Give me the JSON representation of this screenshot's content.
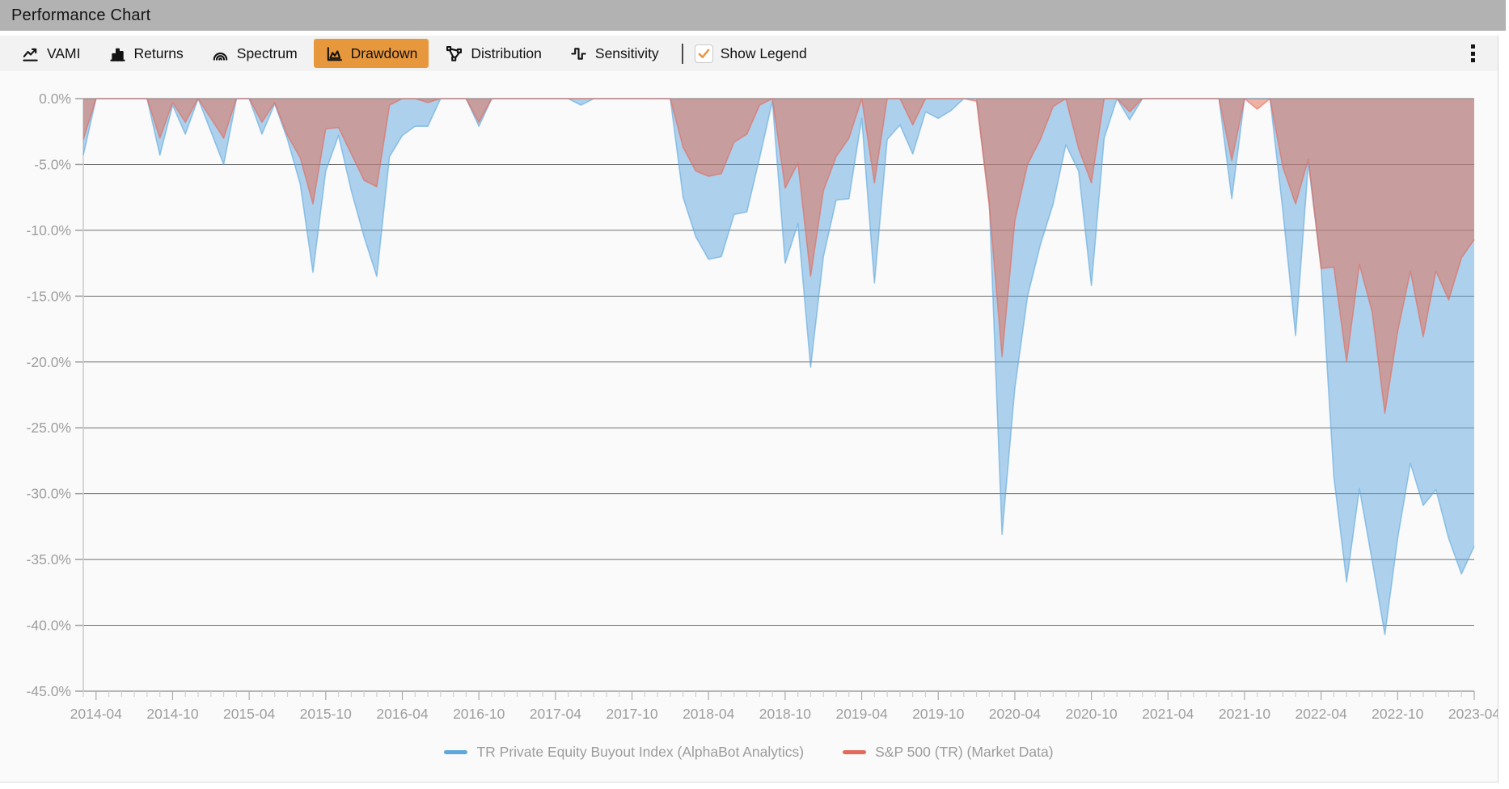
{
  "title": "Performance Chart",
  "toolbar": {
    "tabs": [
      {
        "label": "VAMI",
        "icon": "line-chart-icon",
        "active": false
      },
      {
        "label": "Returns",
        "icon": "bar-chart-icon",
        "active": false
      },
      {
        "label": "Spectrum",
        "icon": "arcs-icon",
        "active": false
      },
      {
        "label": "Drawdown",
        "icon": "area-chart-icon",
        "active": true
      },
      {
        "label": "Distribution",
        "icon": "nodes-icon",
        "active": false
      },
      {
        "label": "Sensitivity",
        "icon": "square-wave-icon",
        "active": false
      }
    ],
    "active_tab_color": "#E8983C",
    "show_legend": {
      "label": "Show Legend",
      "checked": true,
      "check_color": "#E8973F"
    },
    "menu_icon": "kebab-vertical-icon"
  },
  "colors": {
    "title_bar": "#B2B2B2",
    "toolbar_bg": "#F2F2F2",
    "plot_bg": "#FAFAFA",
    "gridline": "#575757",
    "axis_text": "#9E9E9E"
  },
  "chart_data": {
    "type": "area",
    "subtype": "drawdown",
    "title": "",
    "xlabel": "",
    "ylabel": "",
    "unit": "%",
    "grid": true,
    "legend_position": "bottom",
    "ylim": [
      -45,
      0
    ],
    "y_tick_labels": [
      "0.0%",
      "-5.0%",
      "-10.0%",
      "-15.0%",
      "-20.0%",
      "-25.0%",
      "-30.0%",
      "-35.0%",
      "-40.0%",
      "-45.0%"
    ],
    "x_interval": "monthly",
    "x_months_start": "2014-03",
    "x_months_end": "2023-04",
    "x_tick_labels": [
      "2014-04",
      "2014-10",
      "2015-04",
      "2015-10",
      "2016-04",
      "2016-10",
      "2017-04",
      "2017-10",
      "2018-04",
      "2018-10",
      "2019-04",
      "2019-10",
      "2020-04",
      "2020-10",
      "2021-04",
      "2021-10",
      "2022-04",
      "2022-10",
      "2023-04"
    ],
    "series": [
      {
        "name": "TR Private Equity Buyout Index (AlphaBot Analytics)",
        "color": "#5FA8DE",
        "fill": "rgba(95,168,222,0.5)",
        "values": [
          -4.3,
          0,
          0,
          0,
          0,
          0,
          -4.3,
          -0.5,
          -2.7,
          0,
          -2.5,
          -5,
          0,
          0,
          -2.7,
          -0.4,
          -3.1,
          -6.5,
          -13.2,
          -5.5,
          -2.8,
          -7,
          -10.5,
          -13.5,
          -4.4,
          -2.8,
          -2.1,
          -2.1,
          0,
          0,
          0,
          -2.1,
          0,
          0,
          0,
          0,
          0,
          0,
          0,
          -0.5,
          0,
          0,
          0,
          0,
          0,
          0,
          0,
          -7.5,
          -10.5,
          -12.2,
          -12,
          -8.8,
          -8.6,
          -4.5,
          -0.2,
          -12.5,
          -9.5,
          -20.4,
          -12,
          -7.7,
          -7.6,
          -1.5,
          -14,
          -3.1,
          -2,
          -4.2,
          -1,
          -1.5,
          -0.9,
          0,
          0,
          -8,
          -33.1,
          -22,
          -15,
          -11.1,
          -8,
          -3.5,
          -5.5,
          -14.2,
          -3,
          0,
          -1.6,
          0,
          0,
          0,
          0,
          0,
          0,
          0,
          -7.6,
          0,
          0,
          0,
          -8.5,
          -18,
          -4.9,
          -12.8,
          -28.7,
          -36.7,
          -29.6,
          -35.1,
          -40.7,
          -33.4,
          -27.7,
          -30.9,
          -29.7,
          -33.4,
          -36.1,
          -34
        ]
      },
      {
        "name": "S&P 500 (TR) (Market Data)",
        "color": "#E4695B",
        "fill": "rgba(226,105,77,0.5)",
        "values": [
          -3.1,
          0,
          0,
          0,
          0,
          0,
          -3,
          -0.3,
          -1.8,
          0,
          -1.5,
          -3,
          0,
          0,
          -1.8,
          -0.3,
          -2.8,
          -4.5,
          -8,
          -2.3,
          -2.2,
          -4.2,
          -6.2,
          -6.7,
          -0.5,
          0,
          0,
          -0.3,
          0,
          0,
          0,
          -1.8,
          0,
          0,
          0,
          0,
          0,
          0,
          0,
          0,
          0,
          0,
          0,
          0,
          0,
          0,
          0,
          -3.7,
          -5.5,
          -5.9,
          -5.7,
          -3.3,
          -2.7,
          -0.5,
          0,
          -6.8,
          -4.9,
          -13.5,
          -7,
          -4.4,
          -3,
          0,
          -6.4,
          0,
          0,
          -2,
          0,
          0,
          0,
          0,
          -0.2,
          -8.2,
          -19.6,
          -9.3,
          -5,
          -3.1,
          -0.6,
          0,
          -3.8,
          -6.4,
          0,
          0,
          -1,
          0,
          0,
          0,
          0,
          0,
          0,
          0,
          -4.7,
          0,
          -0.8,
          0,
          -5.2,
          -8,
          -4.6,
          -12.9,
          -12.8,
          -20,
          -12.6,
          -16.2,
          -23.9,
          -17.7,
          -13.1,
          -18.1,
          -13.1,
          -15.3,
          -12.1,
          -10.7
        ]
      }
    ]
  }
}
